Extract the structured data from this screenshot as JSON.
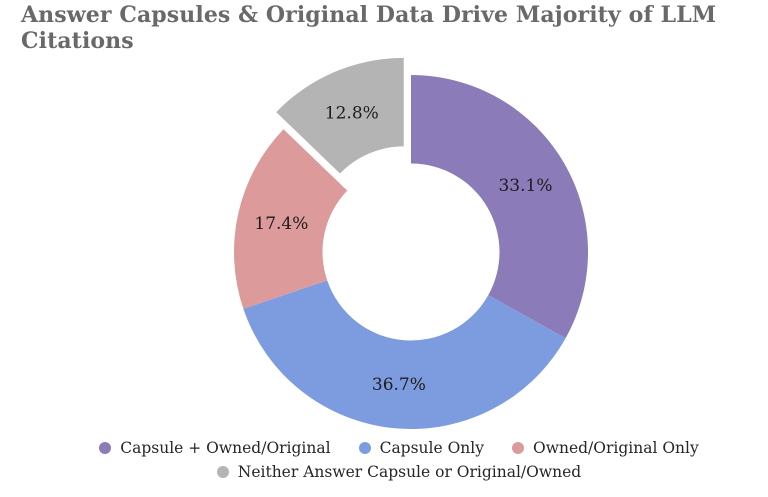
{
  "title": "Answer Capsules & Original Data Drive Majority of LLM Citations",
  "colors": {
    "title": "#696969",
    "slice_label": "#1d1d1d",
    "legend_text": "#262626",
    "background": "#ffffff"
  },
  "chart_data": {
    "type": "pie",
    "donut": true,
    "title": "Answer Capsules & Original Data Drive Majority of LLM Citations",
    "units": "%",
    "start_angle_deg": 0,
    "direction": "clockwise",
    "inner_radius_ratio": 0.5,
    "label_radius_ratio": 0.75,
    "legend_position": "bottom",
    "slices": [
      {
        "id": "capsule-plus-owned-original",
        "label": "Capsule + Owned/Original",
        "value": 33.1,
        "display": "33.1%",
        "color": "#8B7CB9",
        "explode": 0
      },
      {
        "id": "capsule-only",
        "label": "Capsule Only",
        "value": 36.7,
        "display": "36.7%",
        "color": "#7D9CE0",
        "explode": 0
      },
      {
        "id": "owned-original-only",
        "label": "Owned/Original Only",
        "value": 17.4,
        "display": "17.4%",
        "color": "#DC9A9B",
        "explode": 0
      },
      {
        "id": "neither-capsule-or-owned",
        "label": "Neither Answer Capsule or Original/Owned",
        "value": 12.8,
        "display": "12.8%",
        "color": "#B4B4B5",
        "explode": 0.105
      }
    ]
  }
}
